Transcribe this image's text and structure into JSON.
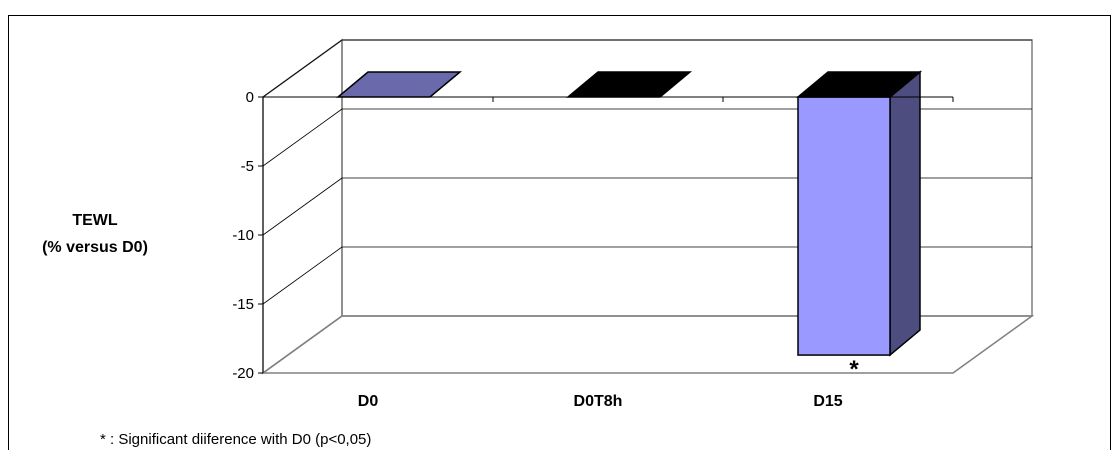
{
  "chart_data": {
    "type": "bar",
    "style": "3d-column",
    "categories": [
      "D0",
      "D0T8h",
      "D15"
    ],
    "values": [
      0,
      0,
      -18.7
    ],
    "colors": [
      "#8080d0",
      "#000000",
      "#9999ff"
    ],
    "ylabel": [
      "TEWL",
      "(% versus D0)"
    ],
    "ylim": [
      -20,
      0
    ],
    "yticks": [
      0,
      -5,
      -10,
      -15,
      -20
    ],
    "grid": true,
    "significance_marker": {
      "category": "D15",
      "symbol": "*"
    },
    "footnote": "* : Significant diiference with D0 (p<0,05)"
  }
}
